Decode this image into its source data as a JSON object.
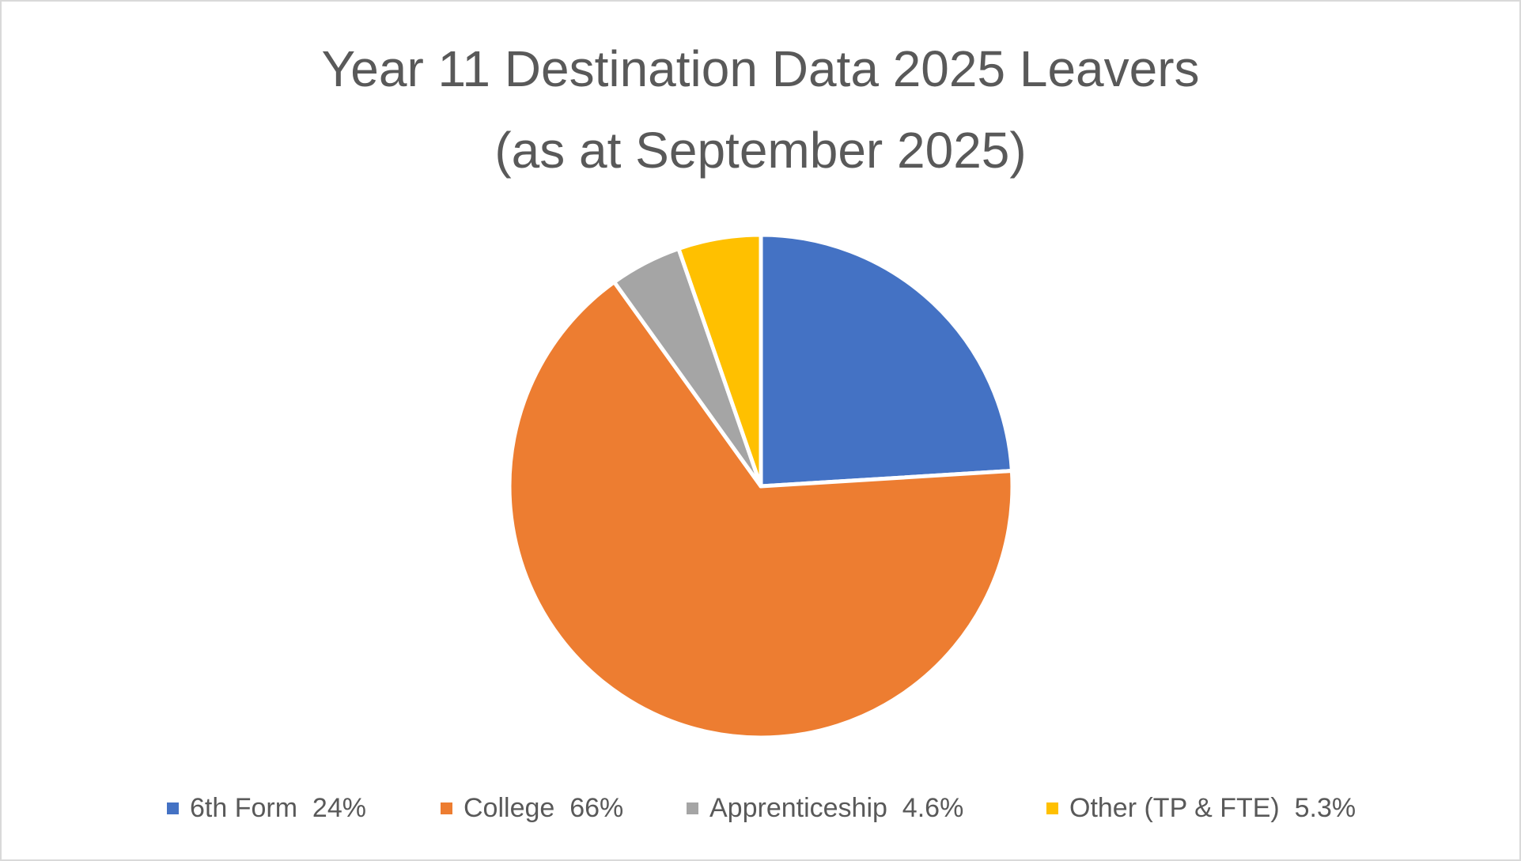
{
  "title": {
    "line1": "Year 11 Destination Data 2025 Leavers",
    "line2": "(as at September 2025)"
  },
  "legend": {
    "items": [
      {
        "label": "6th Form  24%",
        "color": "#4472c4"
      },
      {
        "label": "College  66%",
        "color": "#ed7d31"
      },
      {
        "label": "Apprenticeship  4.6%",
        "color": "#a5a5a5"
      },
      {
        "label": "Other (TP & FTE)  5.3%",
        "color": "#ffc000"
      }
    ]
  },
  "chart_data": {
    "type": "pie",
    "title": "Year 11 Destination Data 2025 Leavers (as at September 2025)",
    "categories": [
      "6th Form",
      "College",
      "Apprenticeship",
      "Other (TP & FTE)"
    ],
    "values": [
      24,
      66,
      4.6,
      5.3
    ],
    "unit": "%",
    "colors": [
      "#4472c4",
      "#ed7d31",
      "#a5a5a5",
      "#ffc000"
    ],
    "start_angle_deg": 0,
    "direction": "clockwise",
    "legend_position": "bottom",
    "data_labels": false
  }
}
